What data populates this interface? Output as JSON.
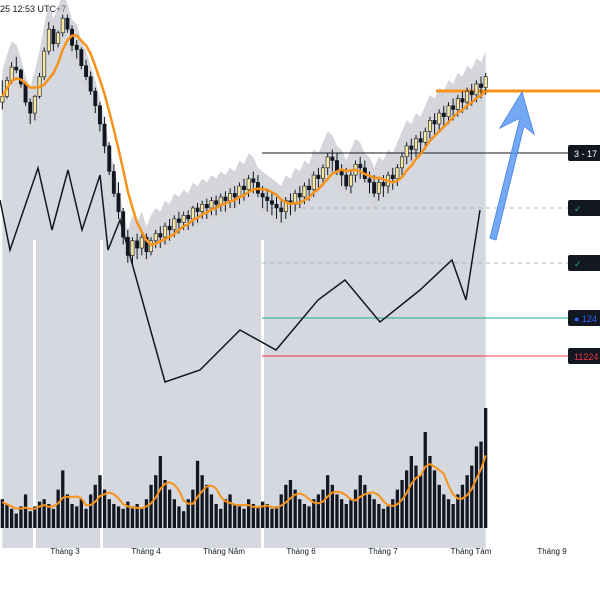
{
  "header": {
    "timestamp": "25 12:53 UTC+7"
  },
  "chart_data": {
    "type": "candlestick",
    "x_ticks": [
      "Tháng 3",
      "Tháng 4",
      "Tháng Năm",
      "Tháng 6",
      "Tháng 7",
      "Tháng Tám",
      "Tháng 9"
    ],
    "price_labels": [
      {
        "text": "3 - 17",
        "color": "#131722",
        "style": "dark-box"
      },
      {
        "text": "✓",
        "color": "#22ab94",
        "style": "dark-box"
      },
      {
        "text": "✓",
        "color": "#22ab94",
        "style": "dark-box"
      },
      {
        "text": "● 124",
        "color": "#2962ff",
        "style": "dark-box"
      },
      {
        "text": "11224",
        "color": "#f23645",
        "style": "dark-box"
      }
    ],
    "colors": {
      "ma": "#f7931a",
      "target_line": "#f7931a",
      "arrow": "#5b9bf5",
      "zigzag": "#131722",
      "support_line": "#22ab94",
      "resistance_red": "#f23645",
      "band_fill": "#9598a1",
      "bull_candle": "#f7e7a0",
      "bear_candle": "#131722",
      "volume": "#131722"
    },
    "candles": [
      [
        0,
        15,
        30,
        -10,
        8
      ],
      [
        8,
        25,
        35,
        5,
        30
      ],
      [
        30,
        40,
        55,
        25,
        48
      ],
      [
        48,
        52,
        62,
        40,
        44
      ],
      [
        44,
        30,
        46,
        20,
        25
      ],
      [
        25,
        10,
        28,
        -5,
        0
      ],
      [
        0,
        -20,
        5,
        -30,
        -15
      ],
      [
        -15,
        5,
        10,
        -25,
        8
      ],
      [
        8,
        30,
        40,
        5,
        35
      ],
      [
        35,
        60,
        75,
        30,
        70
      ],
      [
        70,
        95,
        110,
        65,
        100
      ],
      [
        100,
        85,
        105,
        70,
        80
      ],
      [
        80,
        90,
        98,
        75,
        95
      ],
      [
        95,
        110,
        120,
        90,
        115
      ],
      [
        115,
        105,
        120,
        95,
        100
      ],
      [
        100,
        80,
        105,
        70,
        78
      ],
      [
        78,
        70,
        85,
        60,
        72
      ],
      [
        72,
        55,
        75,
        45,
        50
      ],
      [
        50,
        40,
        58,
        30,
        35
      ],
      [
        35,
        20,
        42,
        10,
        15
      ],
      [
        15,
        0,
        20,
        -15,
        -5
      ],
      [
        -5,
        -25,
        0,
        -40,
        -30
      ],
      [
        -30,
        -45,
        -20,
        -70,
        -60
      ],
      [
        -60,
        -80,
        -55,
        -100,
        -95
      ],
      [
        -95,
        -110,
        -85,
        -130,
        -125
      ],
      [
        -125,
        -140,
        -110,
        -160,
        -150
      ],
      [
        -150,
        -175,
        -145,
        -195,
        -185
      ],
      [
        -185,
        -200,
        -175,
        -220,
        -210
      ],
      [
        -210,
        -195,
        -185,
        -225,
        -190
      ],
      [
        -190,
        -205,
        -180,
        -215,
        -200
      ],
      [
        -200,
        -190,
        -180,
        -210,
        -185
      ],
      [
        -185,
        -200,
        -180,
        -215,
        -205
      ],
      [
        -205,
        -195,
        -185,
        -210,
        -190
      ],
      [
        -190,
        -185,
        -175,
        -200,
        -180
      ],
      [
        -180,
        -190,
        -170,
        -200,
        -185
      ],
      [
        -185,
        -175,
        -165,
        -195,
        -170
      ],
      [
        -170,
        -180,
        -160,
        -190,
        -175
      ],
      [
        -175,
        -165,
        -155,
        -185,
        -160
      ],
      [
        -160,
        -170,
        -150,
        -180,
        -165
      ],
      [
        -165,
        -160,
        -150,
        -175,
        -155
      ],
      [
        -155,
        -165,
        -148,
        -175,
        -160
      ],
      [
        -160,
        -150,
        -142,
        -170,
        -145
      ],
      [
        -145,
        -155,
        -138,
        -165,
        -150
      ],
      [
        -150,
        -145,
        -135,
        -160,
        -140
      ],
      [
        -140,
        -150,
        -132,
        -160,
        -145
      ],
      [
        -145,
        -140,
        -130,
        -155,
        -135
      ],
      [
        -135,
        -145,
        -128,
        -155,
        -140
      ],
      [
        -140,
        -135,
        -125,
        -150,
        -130
      ],
      [
        -130,
        -140,
        -122,
        -150,
        -135
      ],
      [
        -135,
        -128,
        -118,
        -145,
        -125
      ],
      [
        -125,
        -135,
        -115,
        -145,
        -130
      ],
      [
        -130,
        -122,
        -110,
        -140,
        -115
      ],
      [
        -115,
        -125,
        -105,
        -135,
        -120
      ],
      [
        -120,
        -110,
        -100,
        -130,
        -105
      ],
      [
        -105,
        -115,
        -95,
        -125,
        -110
      ],
      [
        -110,
        -120,
        -100,
        -130,
        -125
      ],
      [
        -125,
        -135,
        -115,
        -145,
        -130
      ],
      [
        -130,
        -140,
        -120,
        -150,
        -135
      ],
      [
        -135,
        -145,
        -125,
        -155,
        -140
      ],
      [
        -140,
        -150,
        -130,
        -160,
        -145
      ],
      [
        -145,
        -155,
        -135,
        -165,
        -150
      ],
      [
        -150,
        -140,
        -130,
        -160,
        -135
      ],
      [
        -135,
        -145,
        -125,
        -155,
        -140
      ],
      [
        -140,
        -130,
        -120,
        -150,
        -125
      ],
      [
        -125,
        -135,
        -115,
        -145,
        -130
      ],
      [
        -130,
        -120,
        -110,
        -140,
        -115
      ],
      [
        -115,
        -125,
        -105,
        -135,
        -120
      ],
      [
        -120,
        -110,
        -95,
        -130,
        -100
      ],
      [
        -100,
        -110,
        -90,
        -120,
        -105
      ],
      [
        -105,
        -95,
        -85,
        -115,
        -90
      ],
      [
        -90,
        -80,
        -70,
        -100,
        -75
      ],
      [
        -75,
        -85,
        -65,
        -95,
        -80
      ],
      [
        -80,
        -90,
        -70,
        -100,
        -95
      ],
      [
        -95,
        -105,
        -85,
        -115,
        -100
      ],
      [
        -100,
        -110,
        -90,
        -120,
        -115
      ],
      [
        -115,
        -105,
        -95,
        -125,
        -100
      ],
      [
        -100,
        -90,
        -80,
        -110,
        -85
      ],
      [
        -85,
        -95,
        -75,
        -105,
        -90
      ],
      [
        -90,
        -100,
        -80,
        -110,
        -105
      ],
      [
        -105,
        -115,
        -95,
        -125,
        -110
      ],
      [
        -110,
        -120,
        -100,
        -130,
        -125
      ],
      [
        -125,
        -115,
        -105,
        -135,
        -110
      ],
      [
        -110,
        -120,
        -100,
        -130,
        -115
      ],
      [
        -115,
        -105,
        -95,
        -125,
        -100
      ],
      [
        -100,
        -110,
        -90,
        -120,
        -105
      ],
      [
        -105,
        -95,
        -85,
        -115,
        -90
      ],
      [
        -90,
        -80,
        -70,
        -100,
        -75
      ],
      [
        -75,
        -65,
        -55,
        -85,
        -60
      ],
      [
        -60,
        -70,
        -50,
        -80,
        -65
      ],
      [
        -65,
        -55,
        -45,
        -75,
        -50
      ],
      [
        -50,
        -60,
        -40,
        -70,
        -55
      ],
      [
        -55,
        -45,
        -35,
        -65,
        -40
      ],
      [
        -40,
        -30,
        -20,
        -50,
        -25
      ],
      [
        -25,
        -35,
        -15,
        -45,
        -30
      ],
      [
        -30,
        -20,
        -10,
        -40,
        -15
      ],
      [
        -15,
        -25,
        -5,
        -35,
        -20
      ],
      [
        -20,
        -10,
        0,
        -30,
        -5
      ],
      [
        -5,
        -15,
        5,
        -25,
        -10
      ],
      [
        -10,
        0,
        10,
        -20,
        5
      ],
      [
        5,
        -5,
        15,
        -15,
        0
      ],
      [
        0,
        10,
        20,
        -10,
        15
      ],
      [
        15,
        5,
        25,
        -5,
        10
      ],
      [
        10,
        20,
        30,
        0,
        25
      ],
      [
        25,
        15,
        35,
        5,
        20
      ],
      [
        20,
        30,
        40,
        10,
        35
      ]
    ],
    "volume": [
      12,
      10,
      8,
      6,
      9,
      14,
      7,
      9,
      11,
      12,
      10,
      8,
      16,
      24,
      14,
      10,
      9,
      12,
      8,
      14,
      18,
      22,
      16,
      12,
      10,
      9,
      8,
      11,
      9,
      10,
      8,
      12,
      18,
      22,
      30,
      20,
      16,
      12,
      9,
      7,
      12,
      16,
      28,
      22,
      18,
      14,
      10,
      8,
      12,
      14,
      10,
      9,
      8,
      12,
      10,
      9,
      11,
      10,
      8,
      9,
      14,
      18,
      20,
      16,
      12,
      10,
      9,
      12,
      14,
      16,
      22,
      18,
      14,
      12,
      10,
      12,
      16,
      22,
      18,
      14,
      12,
      10,
      8,
      9,
      12,
      16,
      20,
      24,
      30,
      26,
      22,
      40,
      30,
      24,
      18,
      14,
      12,
      10,
      14,
      18,
      22,
      26,
      34,
      36,
      50
    ],
    "ylim": [
      -230,
      140
    ]
  }
}
